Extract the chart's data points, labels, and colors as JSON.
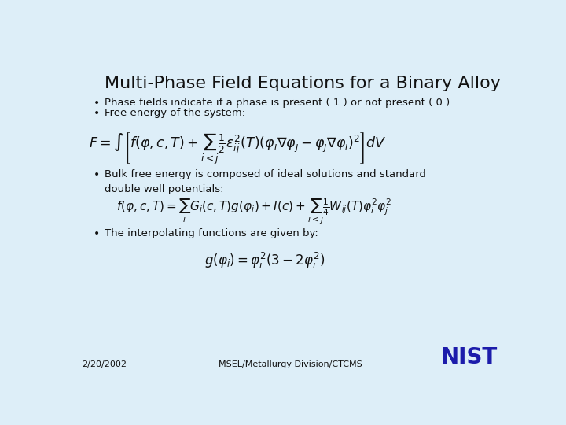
{
  "title": "Multi-Phase Field Equations for a Binary Alloy",
  "background_color": "#ddeef8",
  "title_color": "#111111",
  "title_fontsize": 16,
  "bullet1": "Phase fields indicate if a phase is present ( 1 ) or not present ( 0 ).",
  "bullet2": "Free energy of the system:",
  "eq1": "$F = \\int \\left[ f(\\varphi,c,T) + \\sum_{i<j} \\frac{1}{2} \\varepsilon_{ij}^{2}(T)(\\varphi_i \\nabla \\varphi_j - \\varphi_j \\nabla \\varphi_i)^{2} \\right] dV$",
  "bullet3": "Bulk free energy is composed of ideal solutions and standard\ndouble well potentials:",
  "eq2": "$f(\\varphi,c,T) = \\sum_{i} G_i(c,T)g(\\varphi_i) + I(c) + \\sum_{i<j} \\frac{1}{4} W_{ij}(T) \\varphi_i^2 \\varphi_j^2$",
  "bullet4": "The interpolating functions are given by:",
  "eq3": "$g(\\varphi_i) = \\varphi_i^{2}(3 - 2\\varphi_i^{2})$",
  "footer_left": "2/20/2002",
  "footer_center": "MSEL/Metallurgy Division/CTCMS",
  "nist_color": "#1c1cab",
  "text_color": "#111111",
  "bullet_color": "#111111"
}
